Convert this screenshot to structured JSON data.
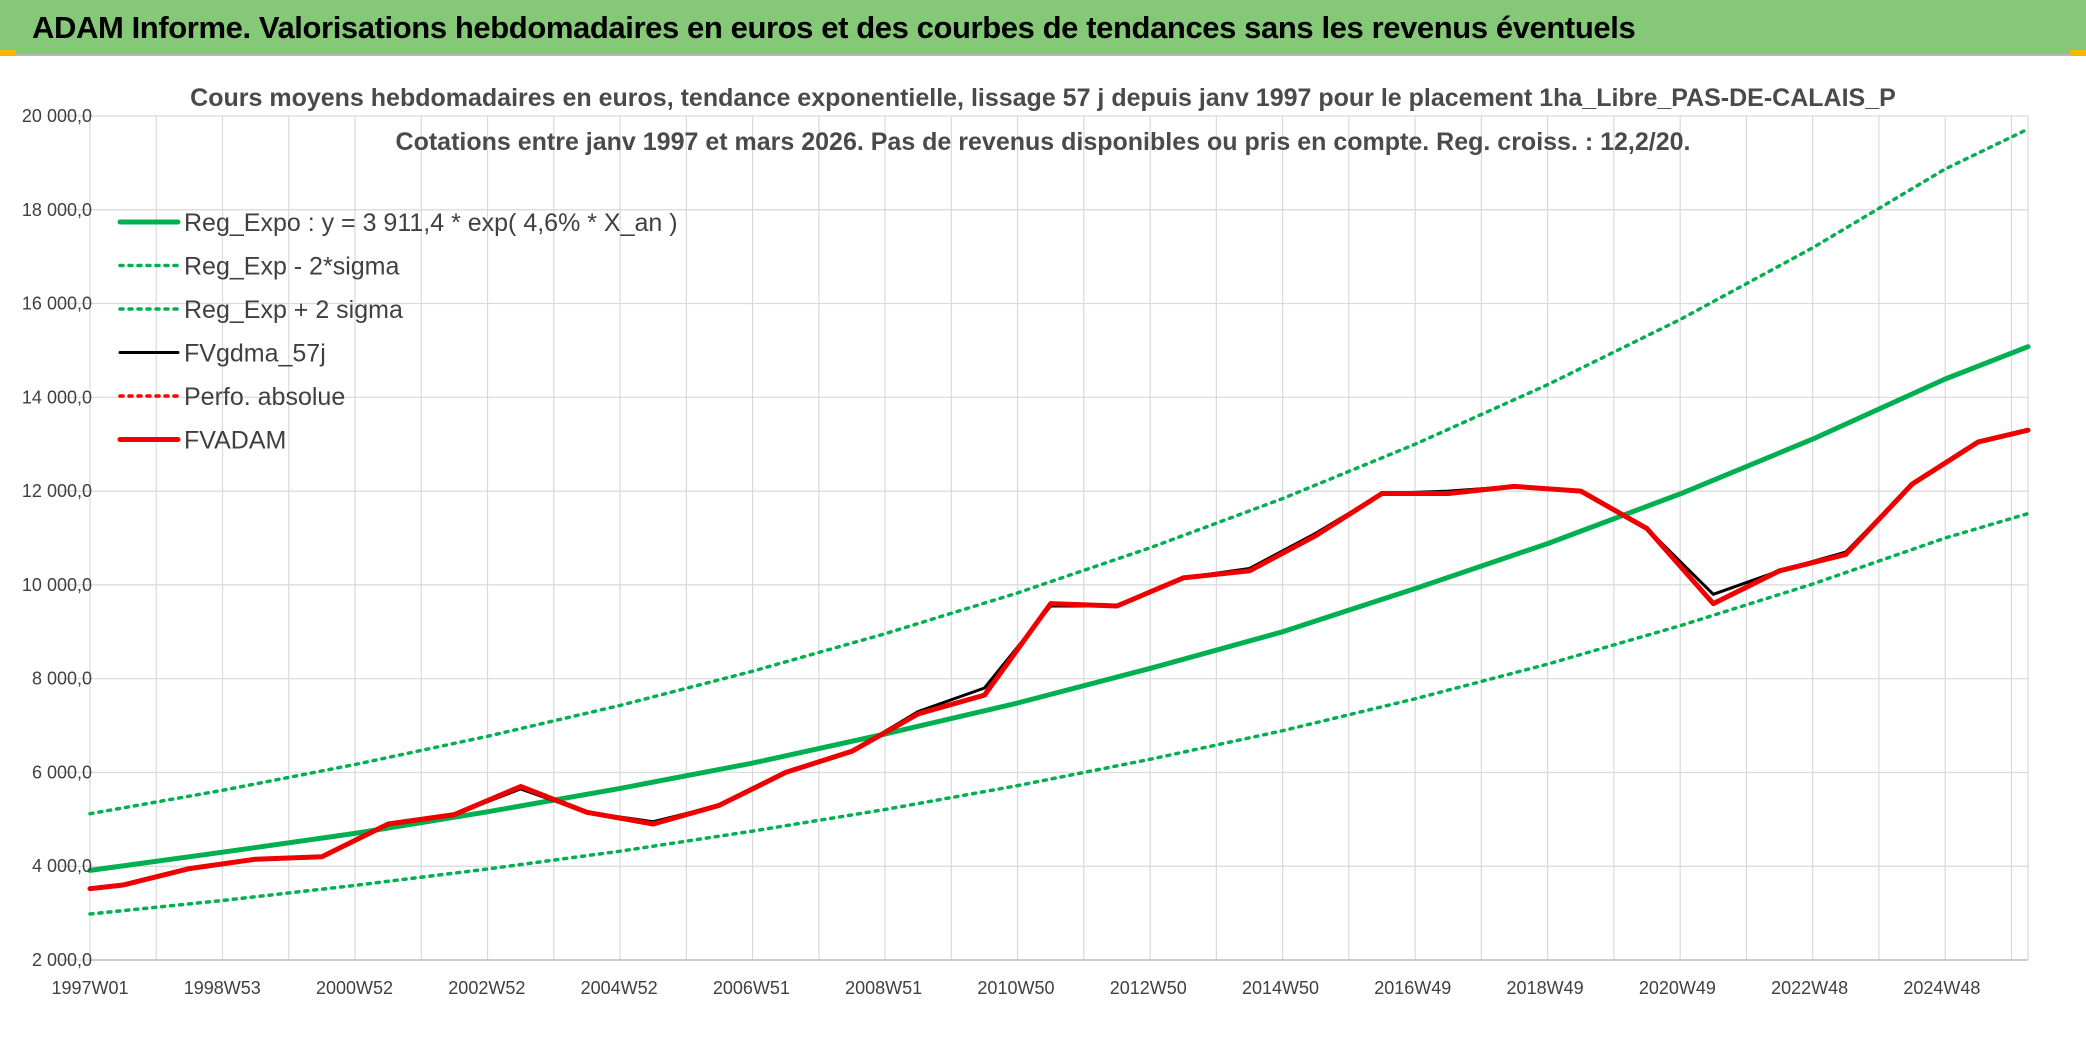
{
  "header": {
    "title": "ADAM Informe. Valorisations hebdomadaires en euros et des courbes de tendances sans les revenus éventuels"
  },
  "chart_data": {
    "type": "line",
    "title_lines": [
      "Cours moyens hebdomadaires en euros, tendance exponentielle, lissage 57 j depuis janv 1997 pour le placement 1ha_Libre_PAS-DE-CALAIS_P",
      "Cotations entre janv 1997 et mars 2026. Pas de revenus disponibles ou pris en compte. Reg. croiss. : 12,2/20."
    ],
    "x_tick_labels": [
      "1997W01",
      "1998W53",
      "2000W52",
      "2002W52",
      "2004W52",
      "2006W51",
      "2008W51",
      "2010W50",
      "2012W50",
      "2014W50",
      "2016W49",
      "2018W49",
      "2020W49",
      "2022W48",
      "2024W48"
    ],
    "x_range_years": [
      1997.0,
      2026.25
    ],
    "ylim": [
      2000,
      20000
    ],
    "y_tick_values": [
      2000,
      4000,
      6000,
      8000,
      10000,
      12000,
      14000,
      16000,
      18000,
      20000
    ],
    "y_tick_labels": [
      "2 000,0",
      "4 000,0",
      "6 000,0",
      "8 000,0",
      "10 000,0",
      "12 000,0",
      "14 000,0",
      "16 000,0",
      "18 000,0",
      "20 000,0"
    ],
    "grid": true,
    "legend_position": "top-left",
    "series": [
      {
        "name": "Reg_Expo : y = 3 911,4 * exp( 4,6% *  X_an )",
        "style": "solid-thick",
        "color": "#00b050",
        "x": [
          1997.0,
          1999.0,
          2001.0,
          2003.0,
          2005.0,
          2007.0,
          2009.0,
          2011.0,
          2013.0,
          2015.0,
          2017.0,
          2019.0,
          2021.0,
          2023.0,
          2025.0,
          2026.25
        ],
        "y": [
          3911,
          4300,
          4700,
          5160,
          5660,
          6200,
          6820,
          7480,
          8220,
          9000,
          9920,
          10880,
          11940,
          13110,
          14390,
          15080
        ]
      },
      {
        "name": "Reg_Exp - 2*sigma",
        "style": "dotted",
        "color": "#00b050",
        "x": [
          1997.0,
          1999.0,
          2001.0,
          2003.0,
          2005.0,
          2007.0,
          2009.0,
          2011.0,
          2013.0,
          2015.0,
          2017.0,
          2019.0,
          2021.0,
          2023.0,
          2025.0,
          2026.25
        ],
        "y": [
          2980,
          3270,
          3590,
          3940,
          4320,
          4750,
          5210,
          5720,
          6280,
          6890,
          7570,
          8310,
          9130,
          10020,
          11000,
          11520
        ]
      },
      {
        "name": "Reg_Exp + 2 sigma",
        "style": "dotted",
        "color": "#00b050",
        "x": [
          1997.0,
          1999.0,
          2001.0,
          2003.0,
          2005.0,
          2007.0,
          2009.0,
          2011.0,
          2013.0,
          2015.0,
          2017.0,
          2019.0,
          2021.0,
          2023.0,
          2025.0,
          2026.25
        ],
        "y": [
          5120,
          5620,
          6170,
          6770,
          7430,
          8160,
          8960,
          9830,
          10790,
          11840,
          13000,
          14270,
          15660,
          17190,
          18870,
          19720
        ]
      },
      {
        "name": "FVgdma_57j",
        "style": "solid",
        "color": "#000000",
        "x": [
          1997.0,
          1997.5,
          1998.5,
          1999.5,
          2000.5,
          2001.5,
          2002.5,
          2003.5,
          2004.5,
          2005.5,
          2006.5,
          2007.5,
          2008.5,
          2009.5,
          2010.5,
          2011.5,
          2012.5,
          2013.5,
          2014.5,
          2015.5,
          2016.5,
          2017.5,
          2018.5,
          2019.5,
          2020.5,
          2021.5,
          2022.5,
          2023.5,
          2024.5,
          2025.5,
          2026.25
        ],
        "y": [
          3520,
          3600,
          3950,
          4150,
          4200,
          4900,
          5100,
          5650,
          5150,
          4950,
          5300,
          6000,
          6450,
          7300,
          7800,
          9550,
          9550,
          10150,
          10350,
          11100,
          11950,
          12000,
          12100,
          12000,
          11200,
          9800,
          10300,
          10700,
          12150,
          13050,
          13300
        ]
      },
      {
        "name": "Perfo. absolue",
        "style": "dotted",
        "color": "#ff0000",
        "x": [],
        "y": []
      },
      {
        "name": "FVADAM",
        "style": "solid-thick",
        "color": "#ee0000",
        "x": [
          1997.0,
          1997.5,
          1998.5,
          1999.5,
          2000.5,
          2001.5,
          2002.5,
          2003.5,
          2004.5,
          2005.5,
          2006.5,
          2007.5,
          2008.5,
          2009.5,
          2010.5,
          2011.5,
          2012.5,
          2013.5,
          2014.5,
          2015.5,
          2016.5,
          2017.5,
          2018.5,
          2019.5,
          2020.5,
          2021.5,
          2022.5,
          2023.5,
          2024.5,
          2025.5,
          2026.25
        ],
        "y": [
          3520,
          3600,
          3950,
          4150,
          4200,
          4900,
          5100,
          5700,
          5150,
          4900,
          5300,
          6000,
          6450,
          7250,
          7650,
          9600,
          9550,
          10150,
          10300,
          11050,
          11950,
          11950,
          12100,
          12000,
          11200,
          9600,
          10300,
          10650,
          12150,
          13050,
          13300
        ]
      }
    ]
  }
}
